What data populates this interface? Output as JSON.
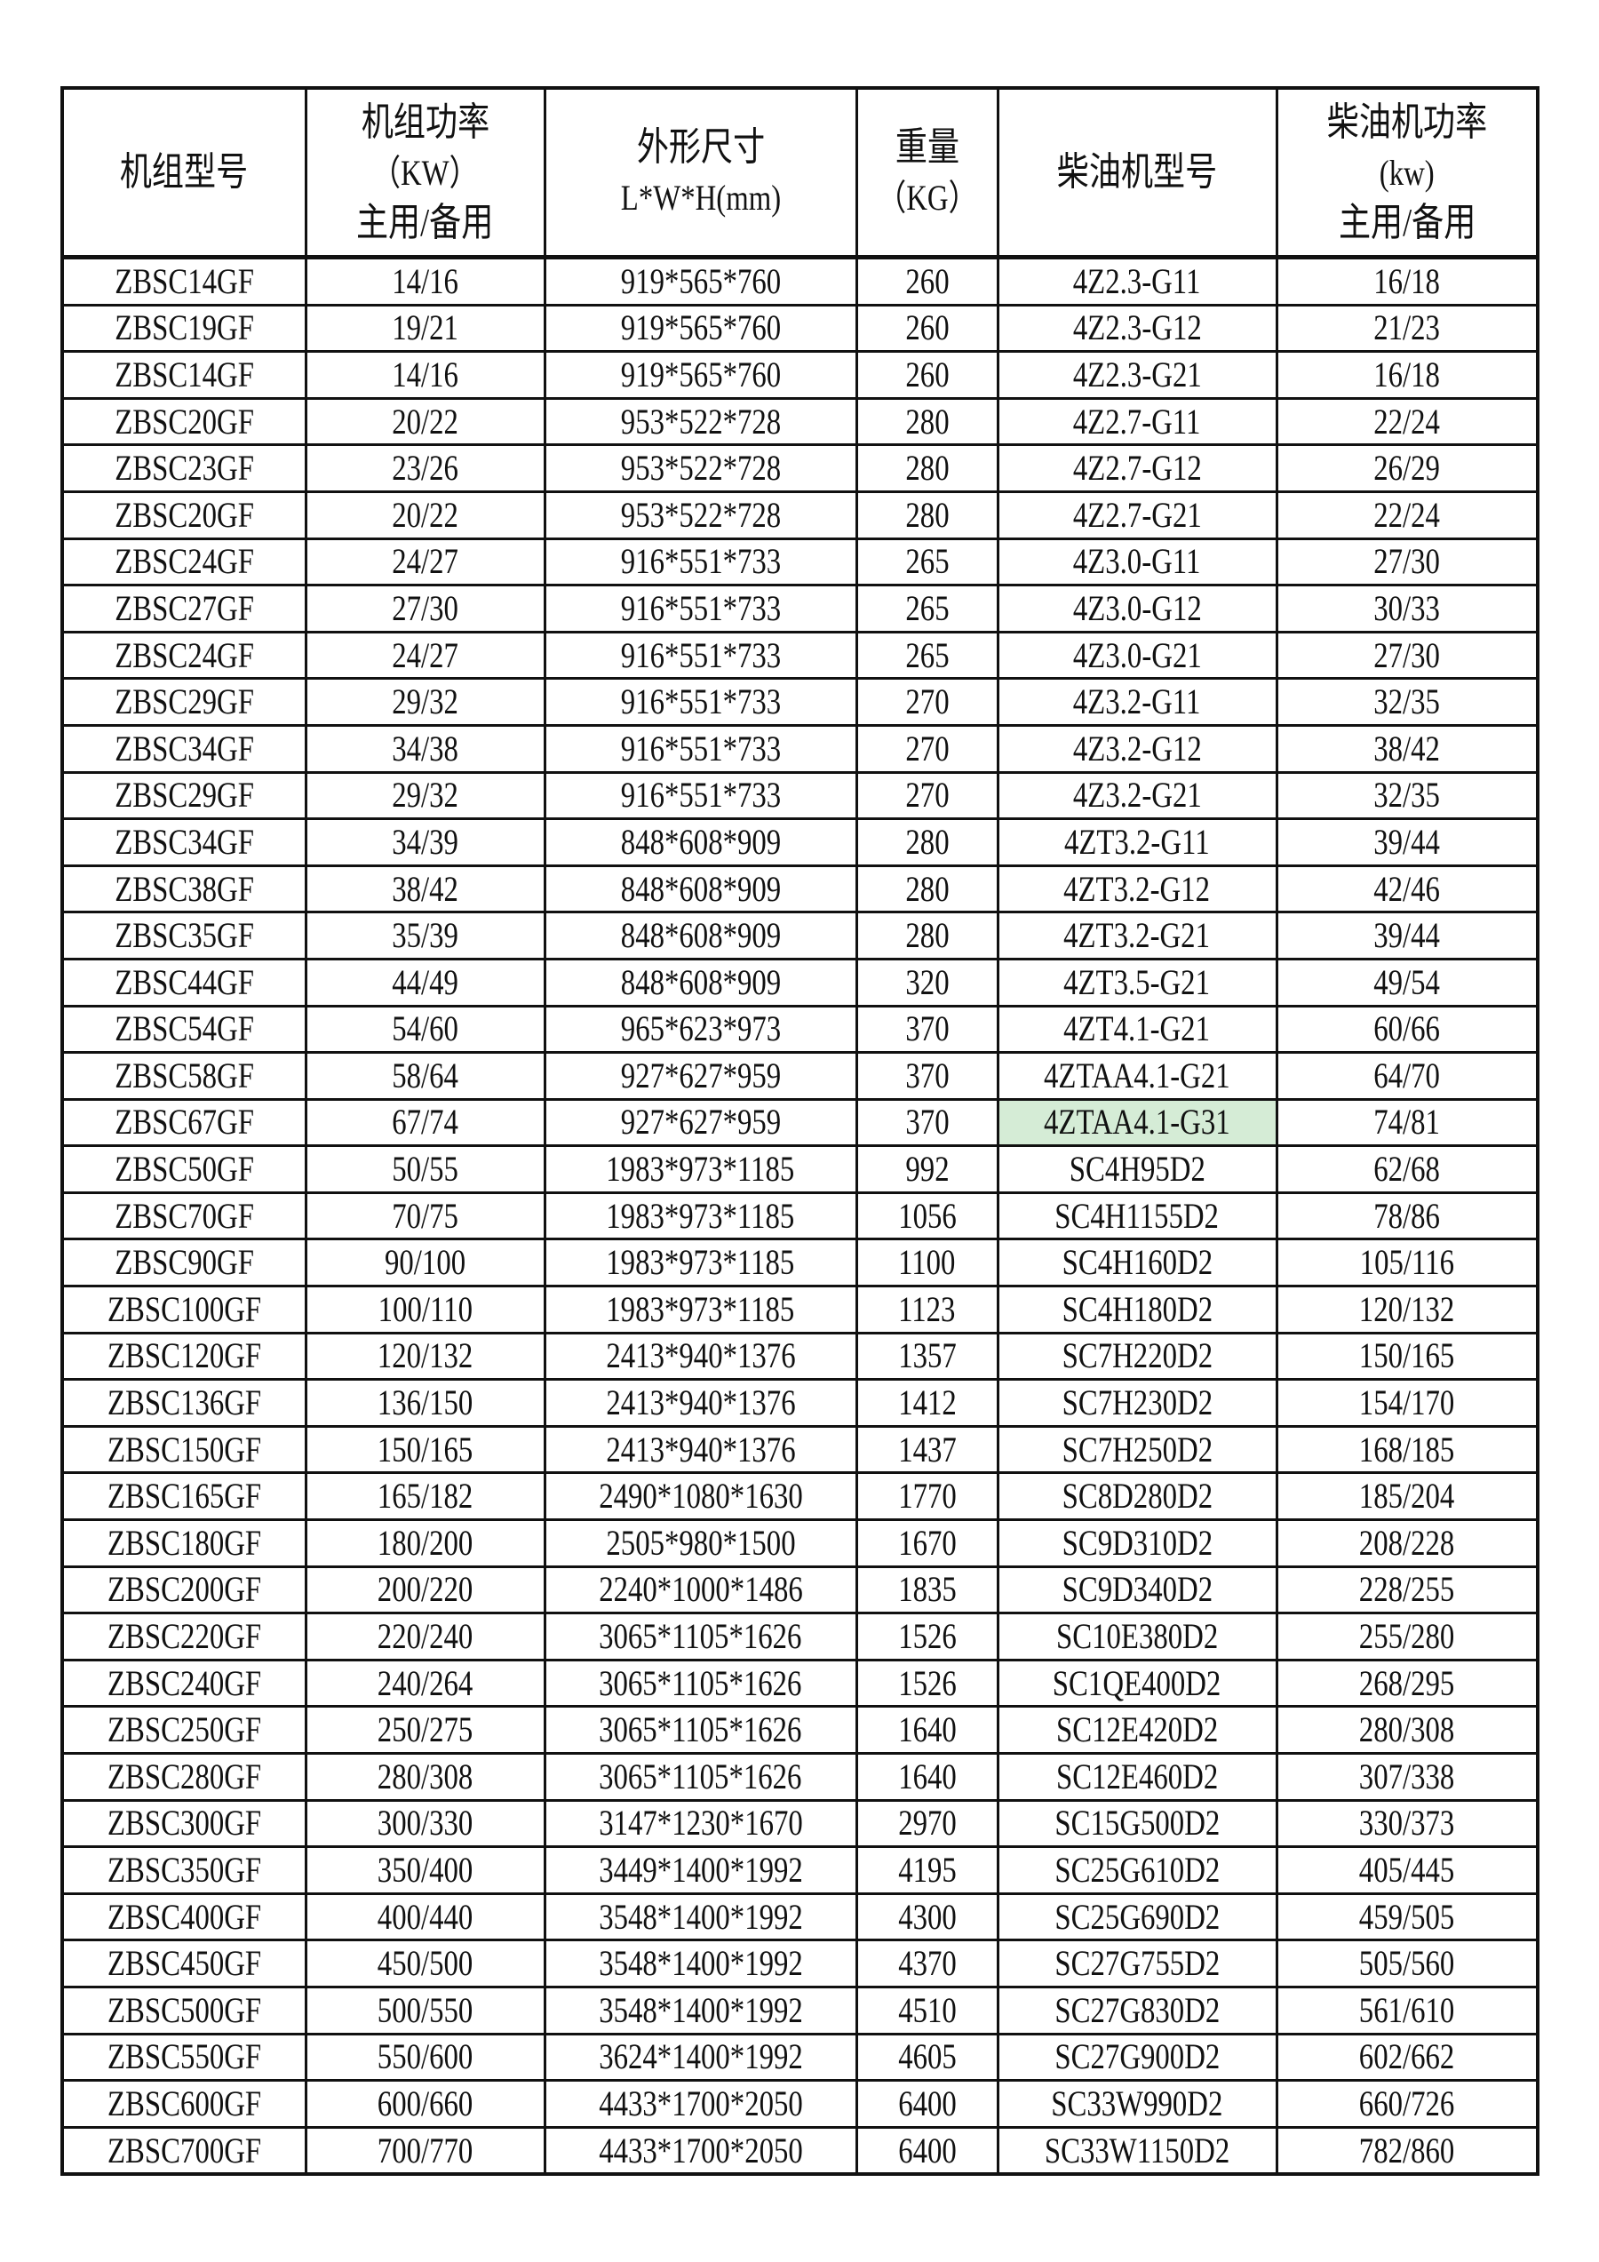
{
  "header": {
    "col_model": "机组型号",
    "col_power": [
      "机组功率",
      "（KW）",
      "主用/备用"
    ],
    "col_dims": [
      "外形尺寸",
      "L*W*H(mm)"
    ],
    "col_weight": [
      "重量",
      "（KG）"
    ],
    "col_engine": "柴油机型号",
    "col_engine_power": [
      "柴油机功率",
      "(kw)",
      "主用/备用"
    ]
  },
  "highlight_color": "#d5ecd6",
  "rows": [
    [
      "ZBSC14GF",
      "14/16",
      "919*565*760",
      "260",
      "4Z2.3-G11",
      "16/18"
    ],
    [
      "ZBSC19GF",
      "19/21",
      "919*565*760",
      "260",
      "4Z2.3-G12",
      "21/23"
    ],
    [
      "ZBSC14GF",
      "14/16",
      "919*565*760",
      "260",
      "4Z2.3-G21",
      "16/18"
    ],
    [
      "ZBSC20GF",
      "20/22",
      "953*522*728",
      "280",
      "4Z2.7-G11",
      "22/24"
    ],
    [
      "ZBSC23GF",
      "23/26",
      "953*522*728",
      "280",
      "4Z2.7-G12",
      "26/29"
    ],
    [
      "ZBSC20GF",
      "20/22",
      "953*522*728",
      "280",
      "4Z2.7-G21",
      "22/24"
    ],
    [
      "ZBSC24GF",
      "24/27",
      "916*551*733",
      "265",
      "4Z3.0-G11",
      "27/30"
    ],
    [
      "ZBSC27GF",
      "27/30",
      "916*551*733",
      "265",
      "4Z3.0-G12",
      "30/33"
    ],
    [
      "ZBSC24GF",
      "24/27",
      "916*551*733",
      "265",
      "4Z3.0-G21",
      "27/30"
    ],
    [
      "ZBSC29GF",
      "29/32",
      "916*551*733",
      "270",
      "4Z3.2-G11",
      "32/35"
    ],
    [
      "ZBSC34GF",
      "34/38",
      "916*551*733",
      "270",
      "4Z3.2-G12",
      "38/42"
    ],
    [
      "ZBSC29GF",
      "29/32",
      "916*551*733",
      "270",
      "4Z3.2-G21",
      "32/35"
    ],
    [
      "ZBSC34GF",
      "34/39",
      "848*608*909",
      "280",
      "4ZT3.2-G11",
      "39/44"
    ],
    [
      "ZBSC38GF",
      "38/42",
      "848*608*909",
      "280",
      "4ZT3.2-G12",
      "42/46"
    ],
    [
      "ZBSC35GF",
      "35/39",
      "848*608*909",
      "280",
      "4ZT3.2-G21",
      "39/44"
    ],
    [
      "ZBSC44GF",
      "44/49",
      "848*608*909",
      "320",
      "4ZT3.5-G21",
      "49/54"
    ],
    [
      "ZBSC54GF",
      "54/60",
      "965*623*973",
      "370",
      "4ZT4.1-G21",
      "60/66"
    ],
    [
      "ZBSC58GF",
      "58/64",
      "927*627*959",
      "370",
      "4ZTAA4.1-G21",
      "64/70"
    ],
    [
      "ZBSC67GF",
      "67/74",
      "927*627*959",
      "370",
      "4ZTAA4.1-G31",
      "74/81"
    ],
    [
      "ZBSC50GF",
      "50/55",
      "1983*973*1185",
      "992",
      "SC4H95D2",
      "62/68"
    ],
    [
      "ZBSC70GF",
      "70/75",
      "1983*973*1185",
      "1056",
      "SC4H1155D2",
      "78/86"
    ],
    [
      "ZBSC90GF",
      "90/100",
      "1983*973*1185",
      "1100",
      "SC4H160D2",
      "105/116"
    ],
    [
      "ZBSC100GF",
      "100/110",
      "1983*973*1185",
      "1123",
      "SC4H180D2",
      "120/132"
    ],
    [
      "ZBSC120GF",
      "120/132",
      "2413*940*1376",
      "1357",
      "SC7H220D2",
      "150/165"
    ],
    [
      "ZBSC136GF",
      "136/150",
      "2413*940*1376",
      "1412",
      "SC7H230D2",
      "154/170"
    ],
    [
      "ZBSC150GF",
      "150/165",
      "2413*940*1376",
      "1437",
      "SC7H250D2",
      "168/185"
    ],
    [
      "ZBSC165GF",
      "165/182",
      "2490*1080*1630",
      "1770",
      "SC8D280D2",
      "185/204"
    ],
    [
      "ZBSC180GF",
      "180/200",
      "2505*980*1500",
      "1670",
      "SC9D310D2",
      "208/228"
    ],
    [
      "ZBSC200GF",
      "200/220",
      "2240*1000*1486",
      "1835",
      "SC9D340D2",
      "228/255"
    ],
    [
      "ZBSC220GF",
      "220/240",
      "3065*1105*1626",
      "1526",
      "SC10E380D2",
      "255/280"
    ],
    [
      "ZBSC240GF",
      "240/264",
      "3065*1105*1626",
      "1526",
      "SC1QE400D2",
      "268/295"
    ],
    [
      "ZBSC250GF",
      "250/275",
      "3065*1105*1626",
      "1640",
      "SC12E420D2",
      "280/308"
    ],
    [
      "ZBSC280GF",
      "280/308",
      "3065*1105*1626",
      "1640",
      "SC12E460D2",
      "307/338"
    ],
    [
      "ZBSC300GF",
      "300/330",
      "3147*1230*1670",
      "2970",
      "SC15G500D2",
      "330/373"
    ],
    [
      "ZBSC350GF",
      "350/400",
      "3449*1400*1992",
      "4195",
      "SC25G610D2",
      "405/445"
    ],
    [
      "ZBSC400GF",
      "400/440",
      "3548*1400*1992",
      "4300",
      "SC25G690D2",
      "459/505"
    ],
    [
      "ZBSC450GF",
      "450/500",
      "3548*1400*1992",
      "4370",
      "SC27G755D2",
      "505/560"
    ],
    [
      "ZBSC500GF",
      "500/550",
      "3548*1400*1992",
      "4510",
      "SC27G830D2",
      "561/610"
    ],
    [
      "ZBSC550GF",
      "550/600",
      "3624*1400*1992",
      "4605",
      "SC27G900D2",
      "602/662"
    ],
    [
      "ZBSC600GF",
      "600/660",
      "4433*1700*2050",
      "6400",
      "SC33W990D2",
      "660/726"
    ],
    [
      "ZBSC700GF",
      "700/770",
      "4433*1700*2050",
      "6400",
      "SC33W1150D2",
      "782/860"
    ]
  ],
  "highlighted_cell": {
    "row": 18,
    "col": 4
  }
}
